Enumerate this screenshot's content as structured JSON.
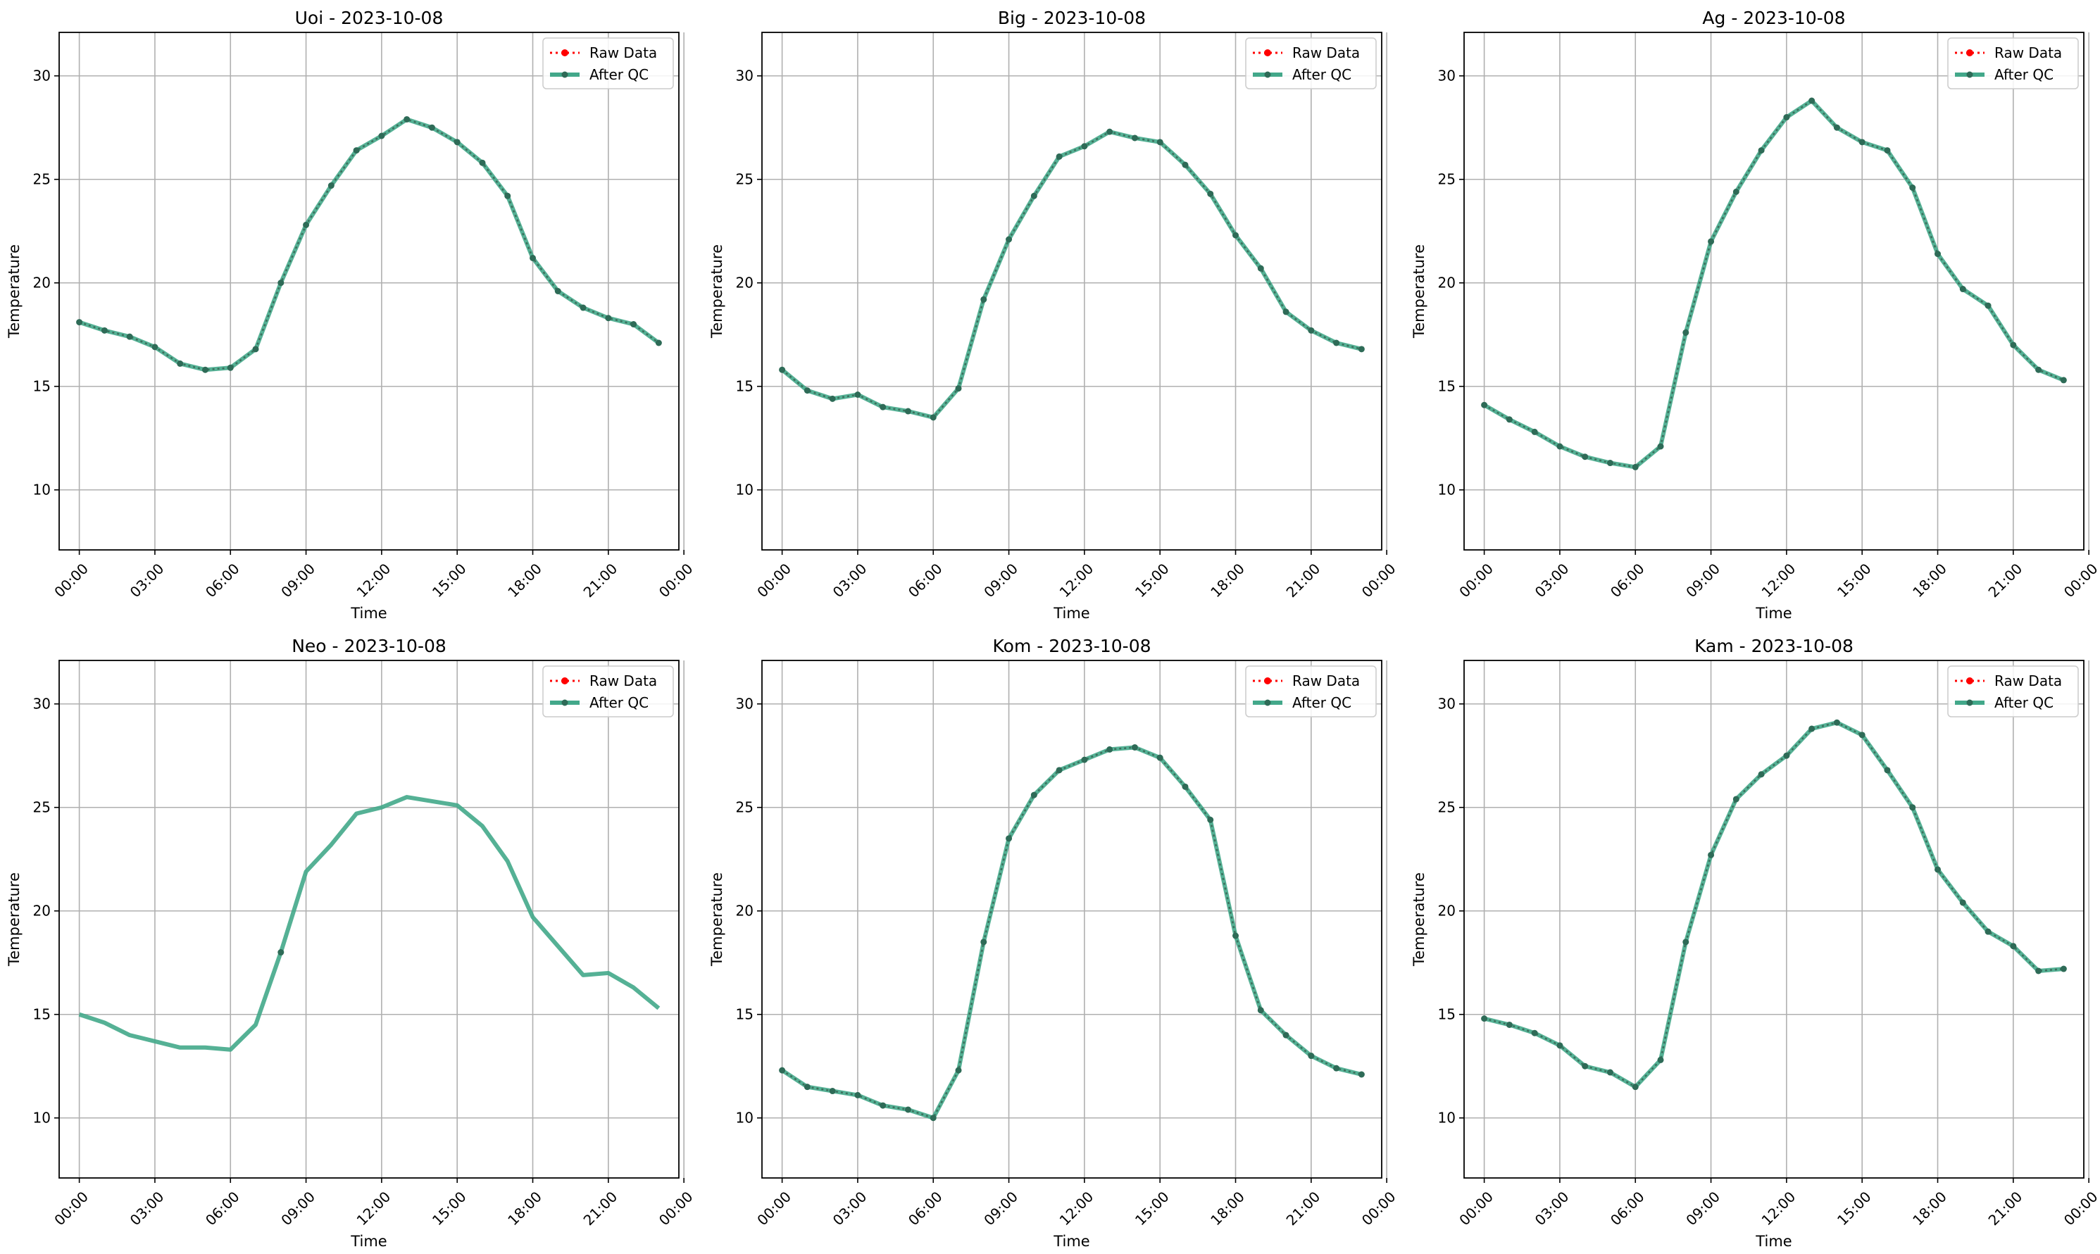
{
  "legend": {
    "raw_label": "Raw Data",
    "qc_label": "After QC",
    "raw_color": "#ff0000",
    "qc_color": "#43a88a",
    "position": "upper right"
  },
  "axes_style": {
    "grid": true,
    "grid_color": "#b0b0b0"
  },
  "chart_data": [
    {
      "type": "line",
      "title": "Uoi - 2023-10-08",
      "xlabel": "Time",
      "ylabel": "Temperature",
      "ylim": [
        7.1,
        32.1
      ],
      "xlim": [
        -0.8,
        23.8
      ],
      "xticks": [
        0,
        3,
        6,
        9,
        12,
        15,
        18,
        21,
        24
      ],
      "xticklabels": [
        "00:00",
        "03:00",
        "06:00",
        "09:00",
        "12:00",
        "15:00",
        "18:00",
        "21:00",
        "00:00"
      ],
      "yticks": [
        10,
        15,
        20,
        25,
        30
      ],
      "x": [
        0,
        1,
        2,
        3,
        4,
        5,
        6,
        7,
        8,
        9,
        10,
        11,
        12,
        13,
        14,
        15,
        16,
        17,
        18,
        19,
        20,
        21,
        22,
        23
      ],
      "series": [
        {
          "name": "Raw Data",
          "values": [
            18.1,
            17.7,
            17.4,
            16.9,
            16.1,
            15.8,
            15.9,
            16.8,
            20.0,
            22.8,
            24.7,
            26.4,
            27.1,
            27.9,
            27.5,
            26.8,
            25.8,
            24.2,
            21.2,
            19.6,
            18.8,
            18.3,
            18.0,
            17.1
          ]
        },
        {
          "name": "After QC",
          "values": [
            18.1,
            17.7,
            17.4,
            16.9,
            16.1,
            15.8,
            15.9,
            16.8,
            20.0,
            22.8,
            24.7,
            26.4,
            27.1,
            27.9,
            27.5,
            26.8,
            25.8,
            24.2,
            21.2,
            19.6,
            18.8,
            18.3,
            18.0,
            17.1
          ]
        }
      ]
    },
    {
      "type": "line",
      "title": "Big - 2023-10-08",
      "xlabel": "Time",
      "ylabel": "Temperature",
      "ylim": [
        7.1,
        32.1
      ],
      "xlim": [
        -0.8,
        23.8
      ],
      "xticks": [
        0,
        3,
        6,
        9,
        12,
        15,
        18,
        21,
        24
      ],
      "xticklabels": [
        "00:00",
        "03:00",
        "06:00",
        "09:00",
        "12:00",
        "15:00",
        "18:00",
        "21:00",
        "00:00"
      ],
      "yticks": [
        10,
        15,
        20,
        25,
        30
      ],
      "x": [
        0,
        1,
        2,
        3,
        4,
        5,
        6,
        7,
        8,
        9,
        10,
        11,
        12,
        13,
        14,
        15,
        16,
        17,
        18,
        19,
        20,
        21,
        22,
        23
      ],
      "series": [
        {
          "name": "Raw Data",
          "values": [
            15.8,
            14.8,
            14.4,
            14.6,
            14.0,
            13.8,
            13.5,
            14.9,
            19.2,
            22.1,
            24.2,
            26.1,
            26.6,
            27.3,
            27.0,
            26.8,
            25.7,
            24.3,
            22.3,
            20.7,
            18.6,
            17.7,
            17.1,
            16.8
          ]
        },
        {
          "name": "After QC",
          "values": [
            15.8,
            14.8,
            14.4,
            14.6,
            14.0,
            13.8,
            13.5,
            14.9,
            19.2,
            22.1,
            24.2,
            26.1,
            26.6,
            27.3,
            27.0,
            26.8,
            25.7,
            24.3,
            22.3,
            20.7,
            18.6,
            17.7,
            17.1,
            16.8
          ]
        }
      ]
    },
    {
      "type": "line",
      "title": "Ag - 2023-10-08",
      "xlabel": "Time",
      "ylabel": "Temperature",
      "ylim": [
        7.1,
        32.1
      ],
      "xlim": [
        -0.8,
        23.8
      ],
      "xticks": [
        0,
        3,
        6,
        9,
        12,
        15,
        18,
        21,
        24
      ],
      "xticklabels": [
        "00:00",
        "03:00",
        "06:00",
        "09:00",
        "12:00",
        "15:00",
        "18:00",
        "21:00",
        "00:00"
      ],
      "yticks": [
        10,
        15,
        20,
        25,
        30
      ],
      "x": [
        0,
        1,
        2,
        3,
        4,
        5,
        6,
        7,
        8,
        9,
        10,
        11,
        12,
        13,
        14,
        15,
        16,
        17,
        18,
        19,
        20,
        21,
        22,
        23
      ],
      "series": [
        {
          "name": "Raw Data",
          "values": [
            14.1,
            13.4,
            12.8,
            12.1,
            11.6,
            11.3,
            11.1,
            12.1,
            17.6,
            22.0,
            24.4,
            26.4,
            28.0,
            28.8,
            27.5,
            26.8,
            26.4,
            24.6,
            21.4,
            19.7,
            18.9,
            17.0,
            15.8,
            15.3
          ]
        },
        {
          "name": "After QC",
          "values": [
            14.1,
            13.4,
            12.8,
            12.1,
            11.6,
            11.3,
            11.1,
            12.1,
            17.6,
            22.0,
            24.4,
            26.4,
            28.0,
            28.8,
            27.5,
            26.8,
            26.4,
            24.6,
            21.4,
            19.7,
            18.9,
            17.0,
            15.8,
            15.3
          ]
        }
      ]
    },
    {
      "type": "line",
      "title": "Neo - 2023-10-08",
      "xlabel": "Time",
      "ylabel": "Temperature",
      "ylim": [
        7.1,
        32.1
      ],
      "xlim": [
        -0.8,
        23.8
      ],
      "xticks": [
        0,
        3,
        6,
        9,
        12,
        15,
        18,
        21,
        24
      ],
      "xticklabels": [
        "00:00",
        "03:00",
        "06:00",
        "09:00",
        "12:00",
        "15:00",
        "18:00",
        "21:00",
        "00:00"
      ],
      "yticks": [
        10,
        15,
        20,
        25,
        30
      ],
      "x": [
        0,
        1,
        2,
        3,
        4,
        5,
        6,
        7,
        8,
        9,
        10,
        11,
        12,
        13,
        14,
        15,
        16,
        17,
        18,
        19,
        20,
        21,
        22,
        23
      ],
      "series": [
        {
          "name": "Raw Data",
          "values": [
            null,
            null,
            null,
            null,
            null,
            null,
            null,
            null,
            18.0,
            null,
            null,
            null,
            null,
            null,
            null,
            null,
            null,
            null,
            null,
            null,
            null,
            null,
            null,
            null
          ]
        },
        {
          "name": "After QC",
          "values": [
            15.0,
            14.6,
            14.0,
            13.7,
            13.4,
            13.4,
            13.3,
            14.5,
            18.0,
            21.9,
            23.2,
            24.7,
            25.0,
            25.5,
            25.3,
            25.1,
            24.1,
            22.4,
            19.7,
            18.3,
            16.9,
            17.0,
            16.3,
            15.3
          ]
        }
      ]
    },
    {
      "type": "line",
      "title": "Kom - 2023-10-08",
      "xlabel": "Time",
      "ylabel": "Temperature",
      "ylim": [
        7.1,
        32.1
      ],
      "xlim": [
        -0.8,
        23.8
      ],
      "xticks": [
        0,
        3,
        6,
        9,
        12,
        15,
        18,
        21,
        24
      ],
      "xticklabels": [
        "00:00",
        "03:00",
        "06:00",
        "09:00",
        "12:00",
        "15:00",
        "18:00",
        "21:00",
        "00:00"
      ],
      "yticks": [
        10,
        15,
        20,
        25,
        30
      ],
      "x": [
        0,
        1,
        2,
        3,
        4,
        5,
        6,
        7,
        8,
        9,
        10,
        11,
        12,
        13,
        14,
        15,
        16,
        17,
        18,
        19,
        20,
        21,
        22,
        23
      ],
      "series": [
        {
          "name": "Raw Data",
          "values": [
            12.3,
            11.5,
            11.3,
            11.1,
            10.6,
            10.4,
            10.0,
            12.3,
            18.5,
            23.5,
            25.6,
            26.8,
            27.3,
            27.8,
            27.9,
            27.4,
            26.0,
            24.4,
            18.8,
            15.2,
            14.0,
            13.0,
            12.4,
            12.1
          ]
        },
        {
          "name": "After QC",
          "values": [
            12.3,
            11.5,
            11.3,
            11.1,
            10.6,
            10.4,
            10.0,
            12.3,
            18.5,
            23.5,
            25.6,
            26.8,
            27.3,
            27.8,
            27.9,
            27.4,
            26.0,
            24.4,
            18.8,
            15.2,
            14.0,
            13.0,
            12.4,
            12.1
          ]
        }
      ]
    },
    {
      "type": "line",
      "title": "Kam - 2023-10-08",
      "xlabel": "Time",
      "ylabel": "Temperature",
      "ylim": [
        7.1,
        32.1
      ],
      "xlim": [
        -0.8,
        23.8
      ],
      "xticks": [
        0,
        3,
        6,
        9,
        12,
        15,
        18,
        21,
        24
      ],
      "xticklabels": [
        "00:00",
        "03:00",
        "06:00",
        "09:00",
        "12:00",
        "15:00",
        "18:00",
        "21:00",
        "00:00"
      ],
      "yticks": [
        10,
        15,
        20,
        25,
        30
      ],
      "x": [
        0,
        1,
        2,
        3,
        4,
        5,
        6,
        7,
        8,
        9,
        10,
        11,
        12,
        13,
        14,
        15,
        16,
        17,
        18,
        19,
        20,
        21,
        22,
        23
      ],
      "series": [
        {
          "name": "Raw Data",
          "values": [
            14.8,
            14.5,
            14.1,
            13.5,
            12.5,
            12.2,
            11.5,
            12.8,
            18.5,
            22.7,
            25.4,
            26.6,
            27.5,
            28.8,
            29.1,
            28.5,
            26.8,
            25.0,
            22.0,
            20.4,
            19.0,
            18.3,
            17.1,
            17.2
          ]
        },
        {
          "name": "After QC",
          "values": [
            14.8,
            14.5,
            14.1,
            13.5,
            12.5,
            12.2,
            11.5,
            12.8,
            18.5,
            22.7,
            25.4,
            26.6,
            27.5,
            28.8,
            29.1,
            28.5,
            26.8,
            25.0,
            22.0,
            20.4,
            19.0,
            18.3,
            17.1,
            17.2
          ]
        }
      ]
    }
  ]
}
